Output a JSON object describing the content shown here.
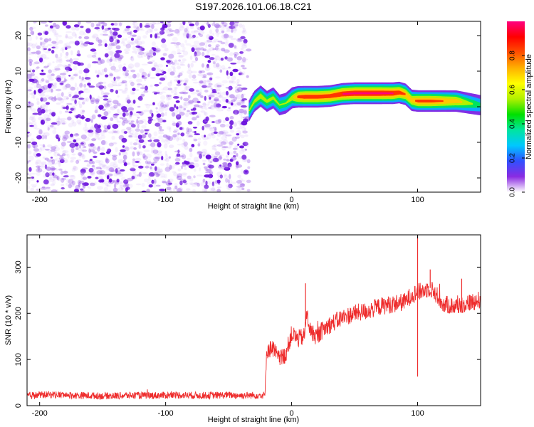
{
  "figure": {
    "title": "S197.2026.101.06.18.C21"
  },
  "chart_data": [
    {
      "type": "heatmap",
      "name": "spectrogram",
      "title": "S197.2026.101.06.18.C21",
      "xlabel": "Height of straight line (km)",
      "ylabel": "Frequency (Hz)",
      "xlim": [
        -210,
        150
      ],
      "ylim": [
        -24,
        24
      ],
      "xticks": [
        -200,
        -100,
        0,
        100
      ],
      "yticks": [
        -20,
        -10,
        0,
        10,
        20
      ],
      "noise_region_x": [
        -210,
        -34
      ],
      "ridge": {
        "x": [
          -34,
          -30,
          -25,
          -20,
          -15,
          -10,
          -5,
          0,
          5,
          10,
          20,
          30,
          40,
          50,
          60,
          70,
          80,
          85,
          90,
          95,
          100,
          110,
          120,
          130,
          140,
          150
        ],
        "freq": [
          -1.0,
          1.5,
          3.0,
          1.5,
          2.5,
          0.5,
          1.0,
          2.5,
          2.8,
          2.8,
          2.8,
          3.0,
          3.6,
          3.8,
          3.8,
          3.8,
          3.8,
          4.0,
          3.5,
          1.8,
          1.6,
          1.6,
          1.6,
          1.6,
          1.0,
          0.4
        ],
        "amplitude": [
          0.5,
          0.55,
          0.6,
          0.55,
          0.55,
          0.5,
          0.5,
          0.6,
          0.85,
          0.9,
          0.9,
          0.9,
          0.95,
          0.97,
          0.97,
          0.97,
          0.95,
          0.9,
          0.8,
          0.75,
          0.85,
          0.85,
          0.8,
          0.75,
          0.55,
          0.4
        ]
      },
      "colorbar": {
        "label": "Normalized spectral amplitude",
        "range": [
          0,
          1
        ],
        "ticks": [
          "0.0",
          "0.2",
          "0.4",
          "0.6",
          "0.8"
        ],
        "colors": [
          "#ffffff",
          "#8a2be2",
          "#3050ff",
          "#00c8ff",
          "#00e5a0",
          "#00e000",
          "#b0f000",
          "#ffff00",
          "#ffb000",
          "#ff5000",
          "#ff0000",
          "#ff0080"
        ]
      }
    },
    {
      "type": "line",
      "name": "snr",
      "xlabel": "Height of straight line (km)",
      "ylabel": "SNR (10 * v/v)",
      "xlim": [
        -210,
        150
      ],
      "ylim": [
        0,
        370
      ],
      "xticks": [
        -200,
        -100,
        0,
        100
      ],
      "yticks": [
        0,
        100,
        200,
        300
      ],
      "color": "#ee2c2c",
      "x": [
        -210,
        -190,
        -170,
        -150,
        -130,
        -110,
        -90,
        -70,
        -50,
        -40,
        -21,
        -20,
        -15,
        -10,
        -5,
        0,
        5,
        10,
        12,
        15,
        20,
        25,
        30,
        40,
        50,
        60,
        70,
        80,
        90,
        95,
        100,
        105,
        110,
        115,
        120,
        130,
        140,
        150
      ],
      "y": [
        22,
        24,
        22,
        21,
        22,
        22,
        23,
        22,
        23,
        22,
        23,
        120,
        125,
        100,
        110,
        155,
        145,
        150,
        200,
        160,
        150,
        165,
        175,
        190,
        200,
        205,
        215,
        220,
        225,
        240,
        245,
        250,
        255,
        240,
        220,
        215,
        222,
        230
      ],
      "spikes": [
        {
          "x": 11,
          "y": 265
        },
        {
          "x": 100,
          "y": 370
        },
        {
          "x": 100,
          "y": 63
        },
        {
          "x": 110,
          "y": 295
        },
        {
          "x": 135,
          "y": 275
        }
      ],
      "noise_amplitude": 14
    }
  ]
}
